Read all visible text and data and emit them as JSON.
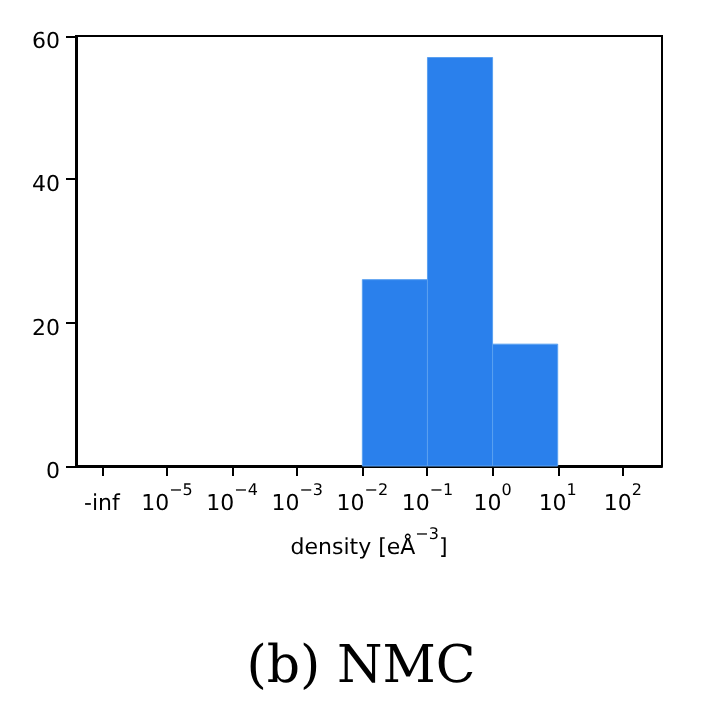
{
  "chart_data": {
    "type": "histogram",
    "title": "(b) NMC",
    "xlabel": "density [eÅ$^{−3}$]",
    "bins": [
      0.01,
      0.1,
      1,
      10
    ],
    "values": [
      26,
      57,
      17
    ],
    "color": "#2a80ec",
    "log": "x",
    "xlim": [
      4e-07,
      400
    ],
    "xticks": [
      {
        "value": 1e-06,
        "label": "-inf"
      },
      {
        "value": 1e-05,
        "label": "10$^{−5}$"
      },
      {
        "value": 0.0001,
        "label": "10$^{−4}$"
      },
      {
        "value": 0.001,
        "label": "10$^{−3}$"
      },
      {
        "value": 0.01,
        "label": "10$^{−2}$"
      },
      {
        "value": 0.1,
        "label": "10$^{−1}$"
      },
      {
        "value": 1,
        "label": "10$^{0}$"
      },
      {
        "value": 10,
        "label": "10$^{1}$"
      },
      {
        "value": 100,
        "label": "10$^{2}$"
      }
    ],
    "ylim": [
      0,
      60
    ],
    "yticks": [
      0,
      20,
      40,
      60
    ],
    "grid": false
  }
}
